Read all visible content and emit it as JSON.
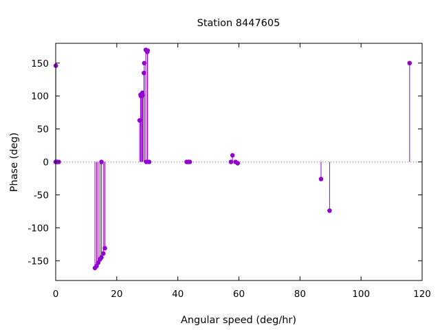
{
  "chart_data": {
    "type": "scatter",
    "title": "Station 8447605",
    "xlabel": "Angular speed (deg/hr)",
    "ylabel": "Phase (deg)",
    "xlim": [
      0,
      120
    ],
    "ylim": [
      -180,
      180
    ],
    "xticks": [
      0,
      20,
      40,
      60,
      80,
      100,
      120
    ],
    "yticks": [
      -150,
      -100,
      -50,
      0,
      50,
      100,
      150
    ],
    "grid": false,
    "zero_line": true,
    "style": "impulses-with-points",
    "color": "#9400d3",
    "series": [
      {
        "x": [
          0.0,
          0.04,
          0.08,
          0.5,
          0.55,
          1.0,
          12.85,
          13.4,
          13.9,
          14.5,
          14.96,
          15.0,
          15.6,
          16.1,
          27.5,
          27.8,
          27.9,
          28.2,
          28.4,
          28.5,
          28.9,
          29.0,
          29.5,
          29.7,
          30.0,
          30.1,
          30.6,
          42.9,
          43.5,
          43.9,
          57.4,
          57.9,
          58.9,
          59.6,
          86.9,
          89.7,
          115.9
        ],
        "y": [
          0,
          146,
          0,
          0,
          0,
          0,
          -161,
          -158,
          -153,
          -148,
          -145,
          0,
          -139,
          -131,
          63,
          102,
          100,
          103,
          105,
          101,
          135,
          150,
          170,
          0,
          167,
          169,
          0,
          0,
          0,
          0,
          0,
          10,
          0,
          -2,
          -26,
          -74,
          150
        ]
      }
    ]
  }
}
